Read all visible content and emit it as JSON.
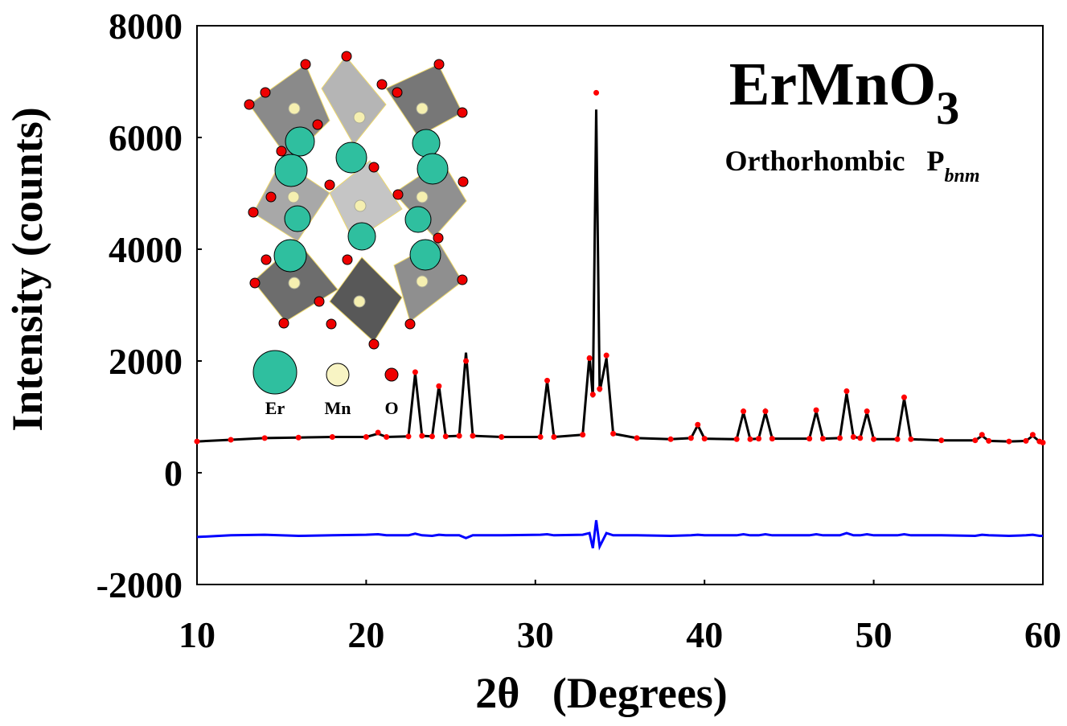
{
  "chart_data": {
    "type": "line",
    "title": {
      "text": "ErMnO",
      "subscript": "3"
    },
    "subtitle": {
      "text": "Orthorhombic   P",
      "subscript": "bnm"
    },
    "x_label": "2θ   (Degrees)",
    "y_label": "Intensity (counts)",
    "inset_labels": [
      "Er",
      "Mn",
      "O"
    ],
    "xlim": [
      10,
      60
    ],
    "xticks": [
      10,
      20,
      30,
      40,
      50,
      60
    ],
    "ylim": [
      -2000,
      8000
    ],
    "yticks": [
      -2000,
      0,
      2000,
      4000,
      6000,
      8000
    ],
    "x": [
      10,
      12,
      14,
      16,
      18,
      20,
      20.7,
      21.2,
      22.5,
      22.9,
      23.3,
      23.9,
      24.3,
      24.7,
      25.5,
      25.9,
      26.3,
      28,
      30.3,
      30.7,
      31.1,
      32.8,
      33.2,
      33.4,
      33.6,
      33.8,
      34.2,
      34.6,
      36,
      38,
      39.2,
      39.6,
      40,
      41.9,
      42.3,
      42.7,
      43.2,
      43.6,
      44,
      46.2,
      46.6,
      47,
      48,
      48.4,
      48.8,
      49.2,
      49.6,
      50,
      51.4,
      51.8,
      52.2,
      54,
      56,
      56.4,
      56.8,
      58,
      59,
      59.4,
      59.8,
      60
    ],
    "series": [
      {
        "style": "dots",
        "color": "#ff0000",
        "values": [
          560,
          590,
          620,
          630,
          640,
          640,
          720,
          640,
          650,
          1800,
          660,
          650,
          1550,
          650,
          660,
          2000,
          660,
          640,
          640,
          1650,
          640,
          680,
          2050,
          1400,
          6800,
          1500,
          2100,
          700,
          620,
          600,
          620,
          860,
          610,
          600,
          1100,
          600,
          610,
          1100,
          610,
          610,
          1120,
          610,
          620,
          1460,
          640,
          620,
          1100,
          600,
          600,
          1350,
          600,
          580,
          580,
          680,
          570,
          560,
          570,
          680,
          560,
          540
        ]
      },
      {
        "style": "line",
        "color": "#000000",
        "values": [
          560,
          590,
          620,
          630,
          640,
          640,
          700,
          640,
          650,
          1780,
          660,
          650,
          1560,
          650,
          660,
          2150,
          660,
          640,
          640,
          1640,
          640,
          680,
          2100,
          1350,
          6500,
          1450,
          2050,
          700,
          620,
          600,
          620,
          850,
          610,
          600,
          1080,
          600,
          610,
          1080,
          610,
          610,
          1100,
          610,
          620,
          1420,
          640,
          620,
          1080,
          600,
          600,
          1330,
          600,
          580,
          580,
          660,
          570,
          560,
          570,
          660,
          560,
          540
        ]
      },
      {
        "style": "line",
        "color": "#0000ff",
        "values": [
          -1150,
          -1120,
          -1110,
          -1130,
          -1120,
          -1110,
          -1100,
          -1120,
          -1120,
          -1090,
          -1120,
          -1130,
          -1110,
          -1120,
          -1120,
          -1170,
          -1120,
          -1120,
          -1110,
          -1100,
          -1120,
          -1110,
          -1080,
          -1350,
          -850,
          -1320,
          -1080,
          -1120,
          -1120,
          -1130,
          -1120,
          -1110,
          -1120,
          -1120,
          -1100,
          -1120,
          -1120,
          -1100,
          -1120,
          -1120,
          -1100,
          -1120,
          -1120,
          -1080,
          -1120,
          -1120,
          -1100,
          -1120,
          -1120,
          -1100,
          -1120,
          -1120,
          -1130,
          -1110,
          -1120,
          -1130,
          -1120,
          -1110,
          -1130,
          -1130
        ]
      }
    ]
  }
}
